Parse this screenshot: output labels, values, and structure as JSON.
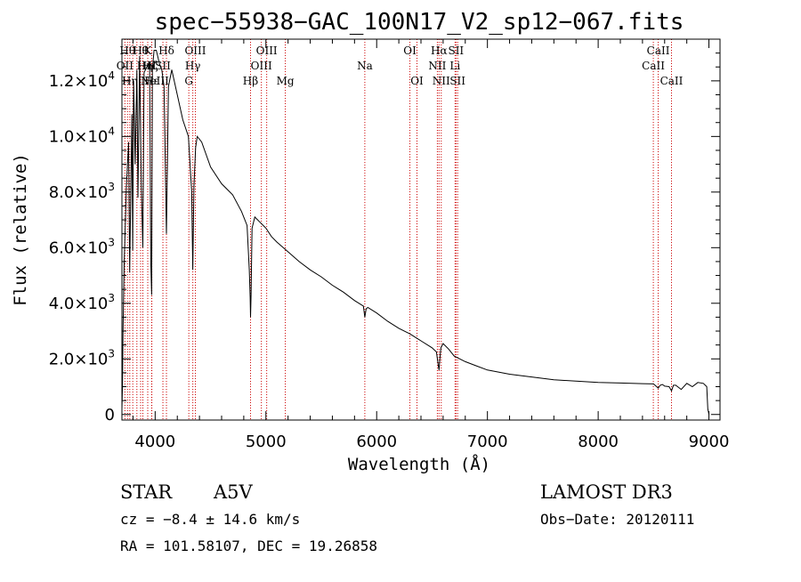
{
  "chart_data": {
    "type": "line",
    "title": "spec−55938−GAC_100N17_V2_sp12−067.fits",
    "xlabel": "Wavelength (Å)",
    "ylabel": "Flux (relative)",
    "xlim": [
      3700,
      9100
    ],
    "ylim": [
      -200,
      13500
    ],
    "x_ticks": [
      {
        "value": 4000,
        "label": "4000"
      },
      {
        "value": 5000,
        "label": "5000"
      },
      {
        "value": 6000,
        "label": "6000"
      },
      {
        "value": 7000,
        "label": "7000"
      },
      {
        "value": 8000,
        "label": "8000"
      },
      {
        "value": 9000,
        "label": "9000"
      }
    ],
    "y_ticks": [
      {
        "value": 0,
        "mant": "0",
        "exp": ""
      },
      {
        "value": 2000,
        "mant": "2.0×10",
        "exp": "3"
      },
      {
        "value": 4000,
        "mant": "4.0×10",
        "exp": "3"
      },
      {
        "value": 6000,
        "mant": "6.0×10",
        "exp": "3"
      },
      {
        "value": 8000,
        "mant": "8.0×10",
        "exp": "3"
      },
      {
        "value": 10000,
        "mant": "1.0×10",
        "exp": "4"
      },
      {
        "value": 12000,
        "mant": "1.2×10",
        "exp": "4"
      }
    ],
    "series": [
      {
        "name": "flux",
        "x": [
          3700,
          3705,
          3710,
          3720,
          3740,
          3760,
          3770,
          3790,
          3797,
          3805,
          3820,
          3835,
          3845,
          3860,
          3875,
          3889,
          3900,
          3925,
          3950,
          3960,
          3968,
          3975,
          3990,
          4010,
          4040,
          4060,
          4080,
          4102,
          4120,
          4150,
          4200,
          4250,
          4300,
          4330,
          4340,
          4350,
          4365,
          4380,
          4420,
          4500,
          4600,
          4700,
          4780,
          4830,
          4850,
          4858,
          4861,
          4866,
          4875,
          4900,
          4950,
          5000,
          5050,
          5100,
          5200,
          5300,
          5400,
          5500,
          5600,
          5700,
          5800,
          5880,
          5893,
          5905,
          5920,
          6000,
          6100,
          6200,
          6300,
          6400,
          6500,
          6540,
          6555,
          6563,
          6570,
          6580,
          6600,
          6650,
          6700,
          6800,
          6900,
          7000,
          7200,
          7400,
          7600,
          7800,
          8000,
          8200,
          8400,
          8500,
          8542,
          8560,
          8580,
          8600,
          8640,
          8662,
          8680,
          8700,
          8750,
          8800,
          8850,
          8900,
          8950,
          8980,
          8990,
          9000
        ],
        "values": [
          200,
          1000,
          3000,
          5400,
          8200,
          9800,
          5100,
          10800,
          5900,
          12000,
          9000,
          12400,
          7800,
          12900,
          8200,
          6000,
          12300,
          12500,
          12700,
          5500,
          4300,
          12400,
          13100,
          13100,
          12600,
          12400,
          11800,
          6500,
          11800,
          12400,
          11500,
          10600,
          10000,
          8000,
          5200,
          8200,
          9600,
          10000,
          9800,
          8900,
          8300,
          7900,
          7300,
          6800,
          5200,
          4200,
          3500,
          4300,
          6700,
          7100,
          6900,
          6700,
          6400,
          6200,
          5850,
          5500,
          5200,
          4950,
          4650,
          4400,
          4100,
          3900,
          3500,
          3800,
          3850,
          3650,
          3350,
          3100,
          2900,
          2650,
          2400,
          2250,
          1800,
          1600,
          2000,
          2400,
          2550,
          2350,
          2100,
          1900,
          1750,
          1600,
          1450,
          1350,
          1250,
          1200,
          1150,
          1130,
          1110,
          1100,
          950,
          1050,
          1080,
          1020,
          1000,
          850,
          1050,
          1050,
          900,
          1120,
          1000,
          1150,
          1120,
          1000,
          200,
          0
        ]
      }
    ],
    "lines": [
      {
        "wave": 3727,
        "label": "OII",
        "row": 1,
        "anchor": "middle"
      },
      {
        "wave": 3750,
        "label": "Hθ",
        "row": 0,
        "anchor": "middle"
      },
      {
        "wave": 3771,
        "label": "Hη",
        "row": 2,
        "anchor": "middle"
      },
      {
        "wave": 3798,
        "label": "Hθ",
        "row": 0,
        "anchor": "start"
      },
      {
        "wave": 3835,
        "label": "Hη",
        "row": 1,
        "anchor": "start"
      },
      {
        "wave": 3869,
        "label": "NeIII",
        "row": 2,
        "anchor": "start"
      },
      {
        "wave": 3889,
        "label": "Hζ",
        "row": 1,
        "anchor": "start"
      },
      {
        "wave": 3933,
        "label": "K",
        "row": 0,
        "anchor": "middle"
      },
      {
        "wave": 3968,
        "label": "H",
        "row": 1,
        "anchor": "middle"
      },
      {
        "wave": 3970,
        "label": "Hε",
        "row": 2,
        "anchor": "middle"
      },
      {
        "wave": 4070,
        "label": "SII",
        "row": 1,
        "anchor": "middle"
      },
      {
        "wave": 4102,
        "label": "Hδ",
        "row": 0,
        "anchor": "middle"
      },
      {
        "wave": 4304,
        "label": "G",
        "row": 2,
        "anchor": "middle"
      },
      {
        "wave": 4340,
        "label": "Hγ",
        "row": 1,
        "anchor": "middle"
      },
      {
        "wave": 4363,
        "label": "OIII",
        "row": 0,
        "anchor": "middle"
      },
      {
        "wave": 4861,
        "label": "Hβ",
        "row": 2,
        "anchor": "middle"
      },
      {
        "wave": 4959,
        "label": "OIII",
        "row": 1,
        "anchor": "middle"
      },
      {
        "wave": 5007,
        "label": "OIII",
        "row": 0,
        "anchor": "middle"
      },
      {
        "wave": 5175,
        "label": "Mg",
        "row": 2,
        "anchor": "middle"
      },
      {
        "wave": 5893,
        "label": "Na",
        "row": 1,
        "anchor": "middle"
      },
      {
        "wave": 6300,
        "label": "OI",
        "row": 0,
        "anchor": "middle"
      },
      {
        "wave": 6364,
        "label": "OI",
        "row": 2,
        "anchor": "middle"
      },
      {
        "wave": 6548,
        "label": "NII",
        "row": 1,
        "anchor": "middle"
      },
      {
        "wave": 6563,
        "label": "Hα",
        "row": 0,
        "anchor": "middle"
      },
      {
        "wave": 6583,
        "label": "NII",
        "row": 2,
        "anchor": "middle"
      },
      {
        "wave": 6708,
        "label": "Li",
        "row": 1,
        "anchor": "middle"
      },
      {
        "wave": 6716,
        "label": "SII",
        "row": 0,
        "anchor": "middle"
      },
      {
        "wave": 6731,
        "label": "SII",
        "row": 2,
        "anchor": "middle"
      },
      {
        "wave": 8498,
        "label": "CaII",
        "row": 1,
        "anchor": "middle"
      },
      {
        "wave": 8542,
        "label": "CaII",
        "row": 0,
        "anchor": "middle"
      },
      {
        "wave": 8662,
        "label": "CaII",
        "row": 2,
        "anchor": "middle"
      }
    ]
  },
  "info": {
    "object_class": "STAR",
    "subclass": "A5V",
    "survey": "LAMOST DR3",
    "cz": "cz = −8.4 ± 14.6 km/s",
    "obs_date": "Obs−Date: 20120111",
    "coords": "RA = 101.58107, DEC =  19.26858"
  },
  "colors": {
    "spectrum": "#000000",
    "line_markers": "#cc0000"
  }
}
